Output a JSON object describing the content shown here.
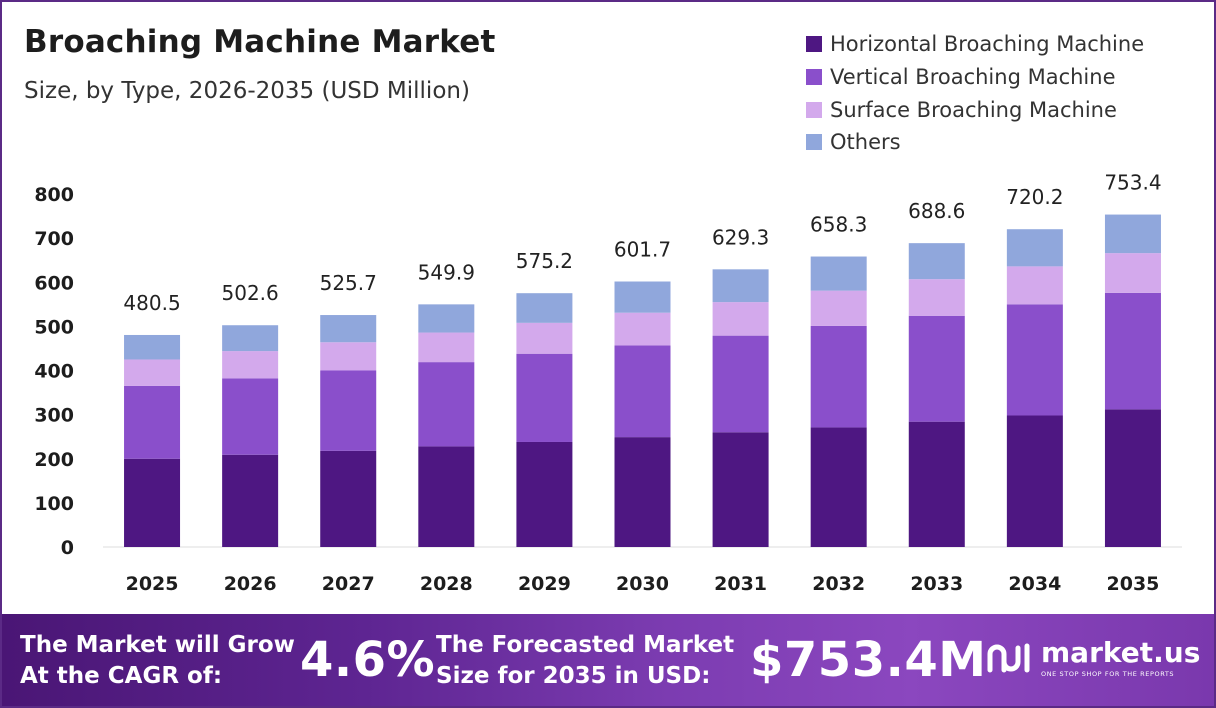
{
  "header": {
    "title": "Broaching Machine Market",
    "subtitle": "Size, by Type, 2026-2035 (USD Million)"
  },
  "colors": {
    "horizontal": "#4e1782",
    "vertical": "#8a4fcb",
    "surface": "#d3a9ec",
    "others": "#90a7dc",
    "grid": "#dddddd"
  },
  "chart_data": {
    "type": "bar",
    "stacked": true,
    "title": "Broaching Machine Market",
    "subtitle": "Size, by Type, 2026-2035 (USD Million)",
    "xlabel": "",
    "ylabel": "",
    "ylim": [
      0,
      800
    ],
    "yticks": [
      "0",
      "100",
      "200",
      "300",
      "400",
      "500",
      "600",
      "700",
      "800"
    ],
    "yticks_values": [
      0,
      100,
      200,
      300,
      400,
      500,
      600,
      700,
      800
    ],
    "categories": [
      "2025",
      "2026",
      "2027",
      "2028",
      "2029",
      "2030",
      "2031",
      "2032",
      "2033",
      "2034",
      "2035"
    ],
    "series": [
      {
        "name": "Horizontal Broaching Machine",
        "color_key": "horizontal",
        "values": [
          200,
          209,
          218,
          228,
          238,
          249,
          260,
          271,
          284,
          298,
          312
        ]
      },
      {
        "name": "Vertical Broaching Machine",
        "color_key": "vertical",
        "values": [
          165,
          173,
          182,
          191,
          200,
          208,
          219,
          230,
          240,
          252,
          264
        ]
      },
      {
        "name": "Surface Broaching Machine",
        "color_key": "surface",
        "values": [
          60,
          62,
          64,
          67,
          70,
          74,
          76,
          80,
          83,
          86,
          90
        ]
      },
      {
        "name": "Others",
        "color_key": "others",
        "values": [
          55.5,
          58.6,
          61.7,
          63.9,
          67.2,
          70.7,
          74.3,
          77.3,
          81.6,
          84.2,
          87.4
        ]
      }
    ],
    "totals": [
      "480.5",
      "502.6",
      "525.7",
      "549.9",
      "575.2",
      "601.7",
      "629.3",
      "658.3",
      "688.6",
      "720.2",
      "753.4"
    ],
    "totals_values": [
      480.5,
      502.6,
      525.7,
      549.9,
      575.2,
      601.7,
      629.3,
      658.3,
      688.6,
      720.2,
      753.4
    ],
    "legend_position": "top-right"
  },
  "footer": {
    "cagr_text_line1": "The Market will Grow",
    "cagr_text_line2": "At the CAGR of:",
    "cagr_value": "4.6%",
    "forecast_text_line1": "The Forecasted Market",
    "forecast_text_line2": "Size for 2035 in USD:",
    "forecast_value": "$753.4M",
    "brand_name": "market.us",
    "brand_tagline": "ONE STOP SHOP FOR THE REPORTS",
    "brand_icon": "market-us-logo-icon"
  }
}
